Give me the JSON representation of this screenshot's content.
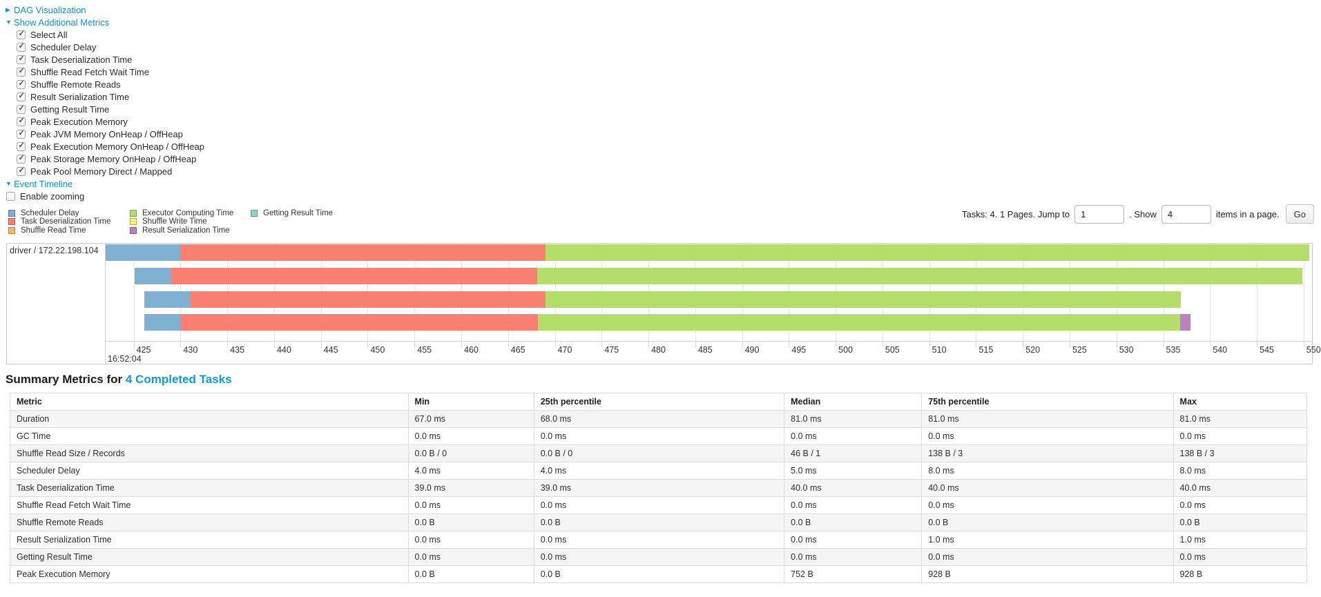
{
  "controls": {
    "dag_visualization": {
      "label": "DAG Visualization"
    },
    "show_additional_metrics": {
      "label": "Show Additional Metrics"
    },
    "metric_checkboxes": [
      {
        "label": "Select All",
        "checked": true
      },
      {
        "label": "Scheduler Delay",
        "checked": true
      },
      {
        "label": "Task Deserialization Time",
        "checked": true
      },
      {
        "label": "Shuffle Read Fetch Wait Time",
        "checked": true
      },
      {
        "label": "Shuffle Remote Reads",
        "checked": true
      },
      {
        "label": "Result Serialization Time",
        "checked": true
      },
      {
        "label": "Getting Result Time",
        "checked": true
      },
      {
        "label": "Peak Execution Memory",
        "checked": true
      },
      {
        "label": "Peak JVM Memory OnHeap / OffHeap",
        "checked": true
      },
      {
        "label": "Peak Execution Memory OnHeap / OffHeap",
        "checked": true
      },
      {
        "label": "Peak Storage Memory OnHeap / OffHeap",
        "checked": true
      },
      {
        "label": "Peak Pool Memory Direct / Mapped",
        "checked": true
      }
    ],
    "event_timeline": {
      "label": "Event Timeline"
    },
    "enable_zooming": {
      "label": "Enable zooming",
      "checked": false
    }
  },
  "pagination": {
    "tasks_text": "Tasks: 4. 1 Pages. Jump to",
    "jump_input_value": "1",
    "show_text": ". Show",
    "show_input_value": "4",
    "items_text": "items in a page.",
    "go_button_label": "Go"
  },
  "chart_data": {
    "type": "timeline",
    "title": "Event Timeline",
    "row_label": "driver / 172.22.198.104",
    "x_axis": {
      "xlim": [
        422.0,
        550.9
      ],
      "ticks": [
        425,
        430,
        435,
        440,
        445,
        450,
        455,
        460,
        465,
        470,
        475,
        480,
        485,
        490,
        495,
        500,
        505,
        510,
        515,
        520,
        525,
        530,
        535,
        540,
        545,
        550
      ],
      "tick_unit": "ms",
      "base_time_label": "16:52:04"
    },
    "legend": [
      {
        "label": "Scheduler Delay",
        "color": "#80B1D3"
      },
      {
        "label": "Task Deserialization Time",
        "color": "#FB8072"
      },
      {
        "label": "Shuffle Read Time",
        "color": "#FDB462"
      },
      {
        "label": "Executor Computing Time",
        "color": "#B3DE69"
      },
      {
        "label": "Shuffle Write Time",
        "color": "#FFED6F"
      },
      {
        "label": "Result Serialization Time",
        "color": "#BC80BD"
      },
      {
        "label": "Getting Result Time",
        "color": "#8DD3C7"
      }
    ],
    "tasks": [
      {
        "segments": [
          {
            "name": "Scheduler Delay",
            "start": 422.0,
            "end": 430.0
          },
          {
            "name": "Task Deserialization Time",
            "start": 430.0,
            "end": 469.0
          },
          {
            "name": "Executor Computing Time",
            "start": 469.0,
            "end": 550.6
          }
        ]
      },
      {
        "segments": [
          {
            "name": "Scheduler Delay",
            "start": 425.1,
            "end": 429.0
          },
          {
            "name": "Task Deserialization Time",
            "start": 429.0,
            "end": 468.1
          },
          {
            "name": "Executor Computing Time",
            "start": 468.1,
            "end": 549.9
          }
        ]
      },
      {
        "segments": [
          {
            "name": "Scheduler Delay",
            "start": 426.1,
            "end": 431.0
          },
          {
            "name": "Task Deserialization Time",
            "start": 431.0,
            "end": 469.0
          },
          {
            "name": "Executor Computing Time",
            "start": 469.0,
            "end": 536.9
          }
        ]
      },
      {
        "segments": [
          {
            "name": "Scheduler Delay",
            "start": 426.1,
            "end": 430.0
          },
          {
            "name": "Task Deserialization Time",
            "start": 430.0,
            "end": 468.2
          },
          {
            "name": "Executor Computing Time",
            "start": 468.2,
            "end": 536.8
          },
          {
            "name": "Result Serialization Time",
            "start": 536.8,
            "end": 537.9
          }
        ]
      }
    ]
  },
  "summary": {
    "title": "Summary Metrics for",
    "link": "4 Completed Tasks"
  },
  "metrics_table": {
    "headers": [
      "Metric",
      "Min",
      "25th percentile",
      "Median",
      "75th percentile",
      "Max"
    ],
    "rows": [
      [
        "Duration",
        "67.0 ms",
        "68.0 ms",
        "81.0 ms",
        "81.0 ms",
        "81.0 ms"
      ],
      [
        "GC Time",
        "0.0 ms",
        "0.0 ms",
        "0.0 ms",
        "0.0 ms",
        "0.0 ms"
      ],
      [
        "Shuffle Read Size / Records",
        "0.0 B / 0",
        "0.0 B / 0",
        "46 B / 1",
        "138 B / 3",
        "138 B / 3"
      ],
      [
        "Scheduler Delay",
        "4.0 ms",
        "4.0 ms",
        "5.0 ms",
        "8.0 ms",
        "8.0 ms"
      ],
      [
        "Task Deserialization Time",
        "39.0 ms",
        "39.0 ms",
        "40.0 ms",
        "40.0 ms",
        "40.0 ms"
      ],
      [
        "Shuffle Read Fetch Wait Time",
        "0.0 ms",
        "0.0 ms",
        "0.0 ms",
        "0.0 ms",
        "0.0 ms"
      ],
      [
        "Shuffle Remote Reads",
        "0.0 B",
        "0.0 B",
        "0.0 B",
        "0.0 B",
        "0.0 B"
      ],
      [
        "Result Serialization Time",
        "0.0 ms",
        "0.0 ms",
        "0.0 ms",
        "1.0 ms",
        "1.0 ms"
      ],
      [
        "Getting Result Time",
        "0.0 ms",
        "0.0 ms",
        "0.0 ms",
        "0.0 ms",
        "0.0 ms"
      ],
      [
        "Peak Execution Memory",
        "0.0 B",
        "0.0 B",
        "752 B",
        "928 B",
        "928 B"
      ]
    ]
  }
}
